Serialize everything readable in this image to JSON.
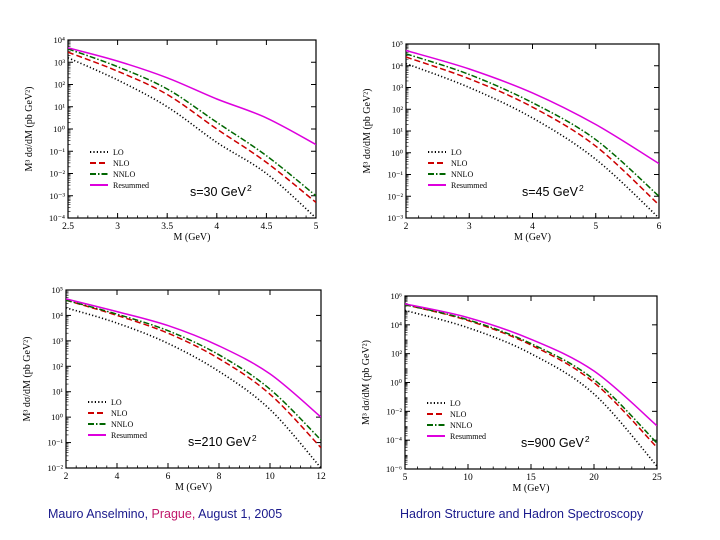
{
  "chart_data": [
    {
      "type": "line",
      "energy_label": "s=30 GeV",
      "energy_exp": "2",
      "xlabel": "M (GeV)",
      "ylabel": "M³ dσ/dM (pb GeV²)",
      "xlim": [
        2.5,
        5
      ],
      "ylim_log10": [
        -4,
        4
      ],
      "y_scale": "log",
      "x_ticks": [
        "2.5",
        "3",
        "3.5",
        "4",
        "4.5",
        "5"
      ],
      "y_ticks": [
        "10⁻⁴",
        "10⁻³",
        "10⁻²",
        "10⁻¹",
        "10⁰",
        "10¹",
        "10²",
        "10³",
        "10⁴"
      ],
      "legend_position": "bottom-left",
      "x": [
        2.5,
        3.0,
        3.5,
        4.0,
        4.5,
        5.0
      ],
      "series": [
        {
          "name": "LO",
          "style": "dotted",
          "color": "#000000",
          "log10_values": [
            3.2,
            2.2,
            1.0,
            -0.6,
            -2.0,
            -4.0
          ]
        },
        {
          "name": "NLO",
          "style": "dashed",
          "color": "#cc0000",
          "log10_values": [
            3.45,
            2.6,
            1.55,
            0.0,
            -1.5,
            -3.3
          ]
        },
        {
          "name": "NNLO",
          "style": "dashdot",
          "color": "#006600",
          "log10_values": [
            3.6,
            2.8,
            1.8,
            0.3,
            -1.2,
            -3.0
          ]
        },
        {
          "name": "Resummed",
          "style": "solid",
          "color": "#dd00dd",
          "log10_values": [
            3.65,
            3.05,
            2.3,
            1.35,
            0.5,
            -0.7
          ]
        }
      ]
    },
    {
      "type": "line",
      "energy_label": "s=45 GeV",
      "energy_exp": "2",
      "xlabel": "M (GeV)",
      "ylabel": "M³ dσ/dM (pb GeV²)",
      "xlim": [
        2,
        6
      ],
      "ylim_log10": [
        -3,
        5
      ],
      "y_scale": "log",
      "x_ticks": [
        "2",
        "3",
        "4",
        "5",
        "6"
      ],
      "y_ticks": [
        "10⁻³",
        "10⁻²",
        "10⁻¹",
        "10⁰",
        "10¹",
        "10²",
        "10³",
        "10⁴",
        "10⁵"
      ],
      "legend_position": "bottom-left",
      "x": [
        2,
        3,
        4,
        5,
        6
      ],
      "series": [
        {
          "name": "LO",
          "style": "dotted",
          "color": "#000000",
          "log10_values": [
            4.1,
            3.0,
            1.6,
            -0.3,
            -3.0
          ]
        },
        {
          "name": "NLO",
          "style": "dashed",
          "color": "#cc0000",
          "log10_values": [
            4.4,
            3.4,
            2.1,
            0.3,
            -2.4
          ]
        },
        {
          "name": "NNLO",
          "style": "dashdot",
          "color": "#006600",
          "log10_values": [
            4.55,
            3.6,
            2.3,
            0.6,
            -2.0
          ]
        },
        {
          "name": "Resummed",
          "style": "solid",
          "color": "#dd00dd",
          "log10_values": [
            4.7,
            3.85,
            2.75,
            1.3,
            -0.5
          ]
        }
      ]
    },
    {
      "type": "line",
      "energy_label": "s=210 GeV",
      "energy_exp": "2",
      "xlabel": "M (GeV)",
      "ylabel": "M³ dσ/dM (pb GeV²)",
      "xlim": [
        2,
        12
      ],
      "ylim_log10": [
        -2,
        5
      ],
      "y_scale": "log",
      "x_ticks": [
        "2",
        "4",
        "6",
        "8",
        "10",
        "12"
      ],
      "y_ticks": [
        "10⁻²",
        "10⁻¹",
        "10⁰",
        "10¹",
        "10²",
        "10³",
        "10⁴",
        "10⁵"
      ],
      "legend_position": "bottom-left",
      "x": [
        2,
        4,
        6,
        8,
        10,
        12
      ],
      "series": [
        {
          "name": "LO",
          "style": "dotted",
          "color": "#000000",
          "log10_values": [
            4.3,
            3.7,
            2.9,
            1.8,
            0.3,
            -2.0
          ]
        },
        {
          "name": "NLO",
          "style": "dashed",
          "color": "#cc0000",
          "log10_values": [
            4.6,
            4.0,
            3.3,
            2.3,
            0.9,
            -1.2
          ]
        },
        {
          "name": "NNLO",
          "style": "dashdot",
          "color": "#006600",
          "log10_values": [
            4.6,
            4.05,
            3.4,
            2.45,
            1.1,
            -0.9
          ]
        },
        {
          "name": "Resummed",
          "style": "solid",
          "color": "#dd00dd",
          "log10_values": [
            4.65,
            4.15,
            3.6,
            2.8,
            1.7,
            0.0
          ]
        }
      ]
    },
    {
      "type": "line",
      "energy_label": "s=900 GeV",
      "energy_exp": "2",
      "xlabel": "M (GeV)",
      "ylabel": "M³ dσ/dM (pb GeV²)",
      "xlim": [
        5,
        25
      ],
      "ylim_log10": [
        -6,
        6
      ],
      "y_scale": "log",
      "x_ticks": [
        "5",
        "10",
        "15",
        "20",
        "25"
      ],
      "y_ticks": [
        "10⁻⁶",
        "10⁻⁴",
        "10⁻²",
        "10⁰",
        "10²",
        "10⁴",
        "10⁶"
      ],
      "legend_position": "bottom-left",
      "x": [
        5,
        10,
        15,
        20,
        25
      ],
      "series": [
        {
          "name": "LO",
          "style": "dotted",
          "color": "#000000",
          "log10_values": [
            5.0,
            3.8,
            2.0,
            -0.8,
            -5.8
          ]
        },
        {
          "name": "NLO",
          "style": "dashed",
          "color": "#cc0000",
          "log10_values": [
            5.4,
            4.3,
            2.6,
            0.0,
            -4.5
          ]
        },
        {
          "name": "NNLO",
          "style": "dashdot",
          "color": "#006600",
          "log10_values": [
            5.4,
            4.35,
            2.7,
            0.2,
            -4.2
          ]
        },
        {
          "name": "Resummed",
          "style": "solid",
          "color": "#dd00dd",
          "log10_values": [
            5.45,
            4.5,
            3.0,
            0.8,
            -3.0
          ]
        }
      ]
    }
  ],
  "footer": {
    "author": "Mauro Anselmino, ",
    "place": "Prague, ",
    "date": "August 1, 2005",
    "conference": "Hadron Structure and Hadron Spectroscopy"
  }
}
